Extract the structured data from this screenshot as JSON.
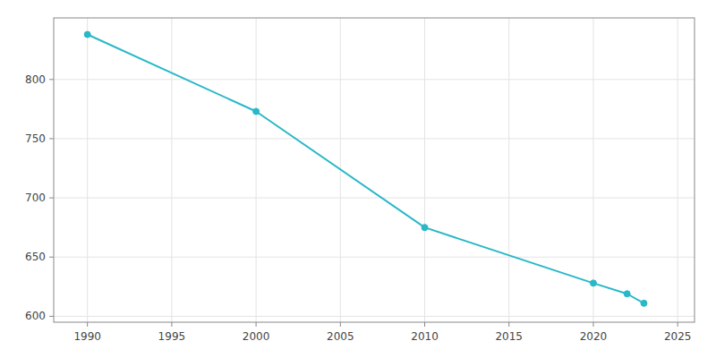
{
  "chart_data": {
    "type": "line",
    "x": [
      1990,
      2000,
      2010,
      2020,
      2022,
      2023
    ],
    "values": [
      838,
      773,
      675,
      628,
      619,
      611
    ],
    "color": "#29b8c8",
    "marker": "circle",
    "xlim": [
      1988,
      2026
    ],
    "ylim": [
      595,
      852
    ],
    "xticks": [
      1990,
      1995,
      2000,
      2005,
      2010,
      2015,
      2020,
      2025
    ],
    "yticks": [
      600,
      650,
      700,
      750,
      800
    ],
    "grid": true
  }
}
